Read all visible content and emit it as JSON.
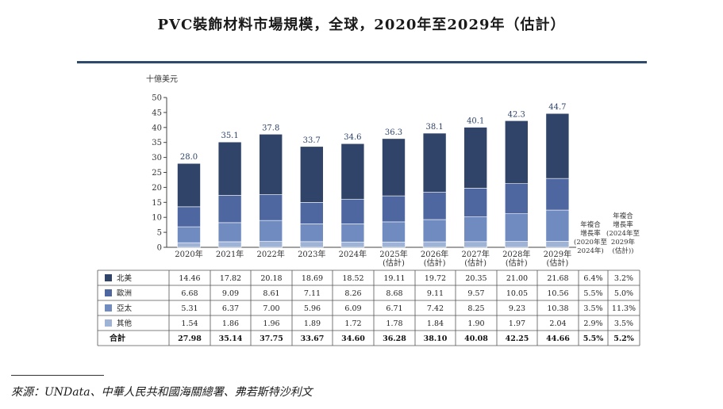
{
  "title": "PVC裝飾材料市場規模，全球，2020年至2029年（估計）",
  "source": "來源：UNData、中華人民共和國海關總署、弗若斯特沙利文",
  "chart_data": {
    "type": "bar",
    "stacked": true,
    "ylabel": "十億美元",
    "ylim": [
      0,
      50
    ],
    "yticks": [
      0,
      5,
      10,
      15,
      20,
      25,
      30,
      35,
      40,
      45,
      50
    ],
    "categories": [
      [
        "2020年"
      ],
      [
        "2021年"
      ],
      [
        "2022年"
      ],
      [
        "2023年"
      ],
      [
        "2024年"
      ],
      [
        "2025年",
        "(估計)"
      ],
      [
        "2026年",
        "(估計)"
      ],
      [
        "2027年",
        "(估計)"
      ],
      [
        "2028年",
        "(估計)"
      ],
      [
        "2029年",
        "(估計)"
      ]
    ],
    "series": [
      {
        "name": "其他",
        "color": "#9fb3d6",
        "values": [
          1.54,
          1.86,
          1.96,
          1.89,
          1.72,
          1.78,
          1.84,
          1.9,
          1.97,
          2.04
        ],
        "cagr": [
          "2.9%",
          "3.5%"
        ]
      },
      {
        "name": "亞太",
        "color": "#6f8bc0",
        "values": [
          5.31,
          6.37,
          7.0,
          5.96,
          6.09,
          6.71,
          7.42,
          8.25,
          9.23,
          10.38
        ],
        "cagr": [
          "3.5%",
          "11.3%"
        ]
      },
      {
        "name": "歐洲",
        "color": "#4e67a0",
        "values": [
          6.68,
          9.09,
          8.61,
          7.11,
          8.26,
          8.68,
          9.11,
          9.57,
          10.05,
          10.56
        ],
        "cagr": [
          "5.5%",
          "5.0%"
        ]
      },
      {
        "name": "北美",
        "color": "#2f4468",
        "values": [
          14.46,
          17.82,
          20.18,
          18.69,
          18.52,
          19.11,
          19.72,
          20.35,
          21.0,
          21.68
        ],
        "cagr": [
          "6.4%",
          "3.2%"
        ]
      }
    ],
    "totals_labels": [
      "28.0",
      "35.1",
      "37.8",
      "33.7",
      "34.6",
      "36.3",
      "38.1",
      "40.1",
      "42.3",
      "44.7"
    ],
    "table_display_order": [
      "北美",
      "歐洲",
      "亞太",
      "其他"
    ],
    "total_row": {
      "name": "合計",
      "values": [
        "27.98",
        "35.14",
        "37.75",
        "33.67",
        "34.60",
        "36.28",
        "38.10",
        "40.08",
        "42.25",
        "44.66"
      ],
      "cagr": [
        "5.5%",
        "5.2%"
      ]
    },
    "cagr_headers": [
      [
        "年複合",
        "增長率",
        "(2020年至",
        "2024年)"
      ],
      [
        "年複合",
        "增長率",
        "(2024年至",
        "2029年",
        "(估計))"
      ]
    ]
  }
}
